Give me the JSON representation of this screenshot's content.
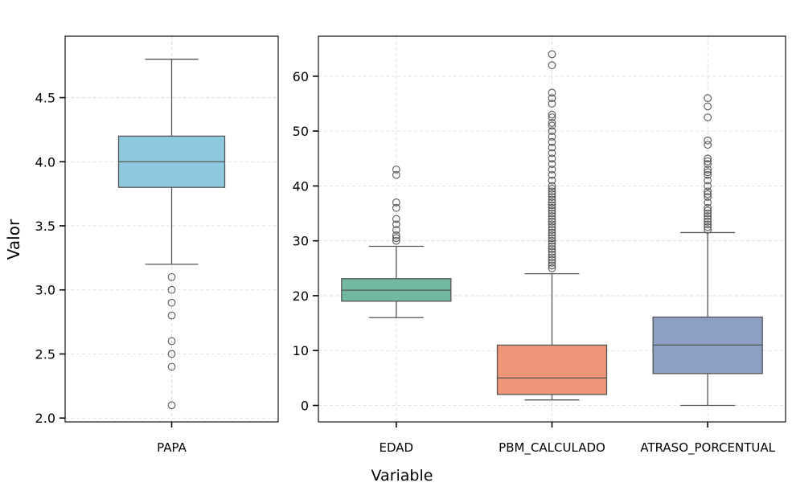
{
  "figure": {
    "ylabel": "Valor",
    "xlabel": "Variable"
  },
  "chart_data": [
    {
      "type": "box",
      "title": "",
      "xlabel": "",
      "ylabel": "Valor",
      "grid": true,
      "ylim": [
        1.97,
        4.98
      ],
      "yticks": [
        2.0,
        2.5,
        3.0,
        3.5,
        4.0,
        4.5
      ],
      "ytick_labels": [
        "2.0",
        "2.5",
        "3.0",
        "3.5",
        "4.0",
        "4.5"
      ],
      "categories": [
        "PAPA"
      ],
      "boxes": [
        {
          "label": "PAPA",
          "color": "#8fc9e0",
          "whisker_low": 3.2,
          "q1": 3.8,
          "median": 4.0,
          "q3": 4.2,
          "whisker_high": 4.8,
          "outliers": [
            3.1,
            3.0,
            2.9,
            2.8,
            2.6,
            2.5,
            2.4,
            2.1
          ]
        }
      ]
    },
    {
      "type": "box",
      "title": "",
      "xlabel": "Variable",
      "ylabel": "",
      "grid": true,
      "ylim": [
        -3.0,
        67.3
      ],
      "yticks": [
        0,
        10,
        20,
        30,
        40,
        50,
        60
      ],
      "ytick_labels": [
        "0",
        "10",
        "20",
        "30",
        "40",
        "50",
        "60"
      ],
      "categories": [
        "EDAD",
        "PBM_CALCULADO",
        "ATRASO_PORCENTUAL"
      ],
      "boxes": [
        {
          "label": "EDAD",
          "color": "#72b9a0",
          "whisker_low": 16,
          "q1": 19,
          "median": 21,
          "q3": 23.1,
          "whisker_high": 29,
          "outliers": [
            30,
            30.5,
            31,
            32,
            33,
            34,
            36,
            37,
            42,
            43
          ]
        },
        {
          "label": "PBM_CALCULADO",
          "color": "#ec9677",
          "whisker_low": 1,
          "q1": 2,
          "median": 5,
          "q3": 11,
          "whisker_high": 24,
          "outliers": [
            25,
            25.5,
            26,
            26.5,
            27,
            27.5,
            28,
            28.5,
            29,
            29.5,
            30,
            30.5,
            31,
            31.5,
            32,
            32.5,
            33,
            33.5,
            34,
            34.5,
            35,
            35.5,
            36,
            36.5,
            37,
            37.5,
            38,
            38.5,
            39,
            39.5,
            40,
            41,
            42,
            43,
            44,
            45,
            46,
            47,
            48,
            49,
            50,
            51,
            51.5,
            52.5,
            53,
            55,
            56,
            57,
            62,
            64
          ]
        },
        {
          "label": "ATRASO_PORCENTUAL",
          "color": "#8e9fc4",
          "whisker_low": 0,
          "q1": 5.8,
          "median": 11,
          "q3": 16.1,
          "whisker_high": 31.5,
          "outliers": [
            32,
            32.5,
            33,
            33.5,
            34,
            34.5,
            35,
            35.5,
            36,
            37,
            38,
            38.5,
            39,
            40,
            41,
            42,
            42.5,
            43,
            44,
            44.5,
            45,
            47.5,
            48.3,
            52.5,
            54.5,
            56
          ]
        }
      ]
    }
  ]
}
